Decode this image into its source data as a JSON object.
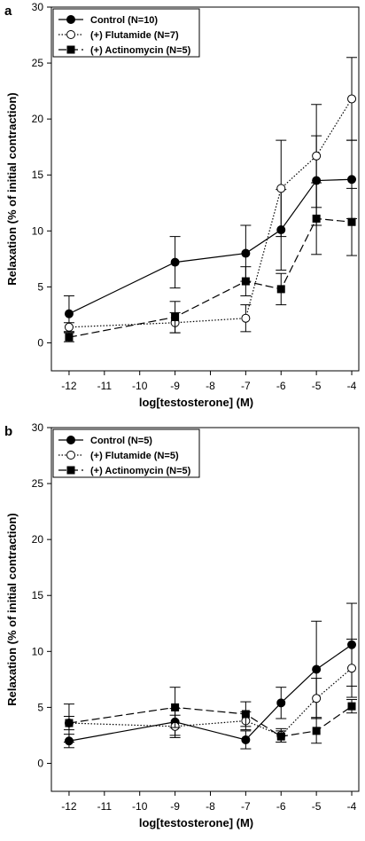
{
  "chart_data": [
    {
      "type": "line",
      "panel_label": "a",
      "xlabel": "log[testosterone] (M)",
      "ylabel": "Relaxation (% of initial contraction)",
      "xlim": [
        -12.5,
        -3.8
      ],
      "ylim": [
        -2.5,
        30
      ],
      "x_ticks": [
        -12,
        -11,
        -10,
        -9,
        -8,
        -7,
        -6,
        -5,
        -4
      ],
      "y_ticks": [
        0,
        5,
        10,
        15,
        20,
        25,
        30
      ],
      "grid": false,
      "legend_position": "top-left",
      "series": [
        {
          "name": "Control (N=10)",
          "marker": "filled-circle",
          "line": "solid",
          "x": [
            -12,
            -9,
            -7,
            -6,
            -5,
            -4
          ],
          "y": [
            2.6,
            7.2,
            8.0,
            10.1,
            14.5,
            14.6
          ],
          "err": [
            1.6,
            2.3,
            2.5,
            3.6,
            4.0,
            3.5
          ]
        },
        {
          "name": "(+) Flutamide (N=7)",
          "marker": "open-circle",
          "line": "dotted",
          "x": [
            -12,
            -9,
            -7,
            -6,
            -5,
            -4
          ],
          "y": [
            1.4,
            1.8,
            2.2,
            13.8,
            16.7,
            21.8
          ],
          "err": [
            0.4,
            0.9,
            1.2,
            4.3,
            4.6,
            3.7
          ]
        },
        {
          "name": "(+) Actinomycin (N=5)",
          "marker": "filled-square",
          "line": "dashed",
          "x": [
            -12,
            -9,
            -7,
            -6,
            -5,
            -4
          ],
          "y": [
            0.5,
            2.3,
            5.5,
            4.8,
            11.1,
            10.8
          ],
          "err": [
            0.4,
            1.4,
            1.3,
            1.4,
            3.2,
            3.0
          ]
        }
      ]
    },
    {
      "type": "line",
      "panel_label": "b",
      "xlabel": "log[testosterone] (M)",
      "ylabel": "Relaxation (% of initial contraction)",
      "xlim": [
        -12.5,
        -3.8
      ],
      "ylim": [
        -2.5,
        30
      ],
      "x_ticks": [
        -12,
        -11,
        -10,
        -9,
        -8,
        -7,
        -6,
        -5,
        -4
      ],
      "y_ticks": [
        0,
        5,
        10,
        15,
        20,
        25,
        30
      ],
      "grid": false,
      "legend_position": "top-left",
      "series": [
        {
          "name": "Control (N=5)",
          "marker": "filled-circle",
          "line": "solid",
          "x": [
            -12,
            -9,
            -7,
            -6,
            -5,
            -4
          ],
          "y": [
            2.0,
            3.7,
            2.1,
            5.4,
            8.4,
            10.6
          ],
          "err": [
            0.6,
            1.2,
            0.8,
            1.4,
            4.3,
            3.7
          ]
        },
        {
          "name": "(+) Flutamide (N=5)",
          "marker": "open-circle",
          "line": "dotted",
          "x": [
            -12,
            -9,
            -7,
            -6,
            -5,
            -4
          ],
          "y": [
            3.6,
            3.3,
            3.8,
            2.5,
            5.8,
            8.5
          ],
          "err": [
            0.6,
            1.0,
            0.8,
            0.6,
            1.8,
            2.6
          ]
        },
        {
          "name": "(+) Actinomycin (N=5)",
          "marker": "filled-square",
          "line": "dashed",
          "x": [
            -12,
            -9,
            -7,
            -6,
            -5,
            -4
          ],
          "y": [
            3.6,
            5.0,
            4.4,
            2.4,
            2.9,
            5.1
          ],
          "err": [
            1.7,
            1.8,
            1.1,
            0.5,
            1.1,
            0.6
          ]
        }
      ]
    }
  ]
}
